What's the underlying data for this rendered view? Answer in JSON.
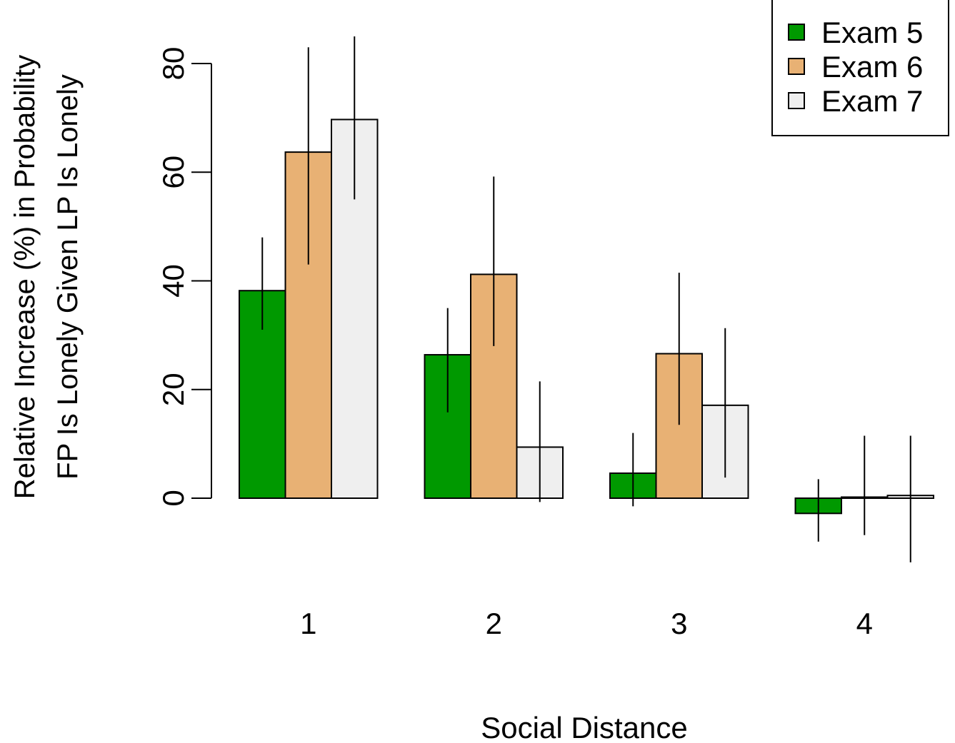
{
  "chart_data": {
    "type": "bar",
    "title": "",
    "xlabel": "Social Distance",
    "ylabel_lines": [
      "Relative Increase (%) in Probability",
      "FP Is Lonely Given LP Is Lonely"
    ],
    "categories": [
      "1",
      "2",
      "3",
      "4"
    ],
    "series": [
      {
        "name": "Exam 5",
        "color": "#009900",
        "values": [
          38.2,
          26.4,
          4.6,
          -2.8
        ],
        "err_low": [
          31,
          15.8,
          -1.5,
          -8
        ],
        "err_high": [
          48,
          35,
          12,
          3.5
        ]
      },
      {
        "name": "Exam 6",
        "color": "#E8B174",
        "values": [
          63.7,
          41.2,
          26.6,
          0.2
        ],
        "err_low": [
          43,
          28,
          13.5,
          -6.8
        ],
        "err_high": [
          83,
          59.2,
          41.5,
          11.5
        ]
      },
      {
        "name": "Exam 7",
        "color": "#EFEFEF",
        "values": [
          69.7,
          9.4,
          17.1,
          0.5
        ],
        "err_low": [
          55,
          -0.7,
          3.8,
          -11.8
        ],
        "err_high": [
          85,
          21.5,
          31.3,
          11.5
        ]
      }
    ],
    "yticks": [
      0,
      20,
      40,
      60,
      80
    ],
    "ylim": [
      -15,
      90
    ],
    "grid": false,
    "legend": "top-right"
  }
}
